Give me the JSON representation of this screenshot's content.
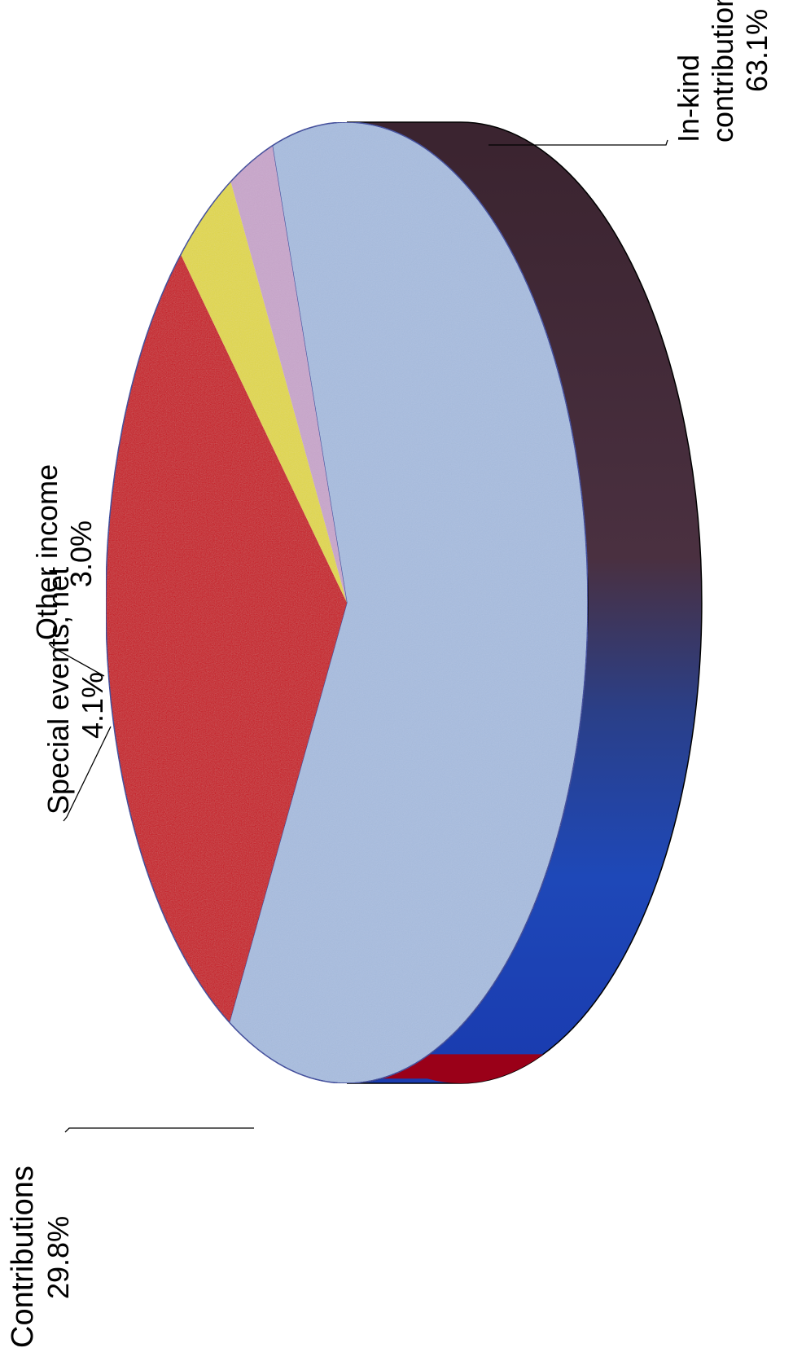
{
  "chart_data": {
    "type": "pie",
    "style": "3d",
    "orientation": "rotated 90° counter-clockwise",
    "slices": [
      {
        "label_line1": "In-kind",
        "label_line2": "contributions",
        "value_text": "63.1%",
        "value": 63.1,
        "color": "#a8bde0",
        "side_color": "#3a2633"
      },
      {
        "label_line1": "Contributions",
        "label_line2": "",
        "value_text": "29.8%",
        "value": 29.8,
        "color": "#c8001c",
        "side_color": "#9a0018"
      },
      {
        "label_line1": "Special events, net",
        "label_line2": "",
        "value_text": "4.1%",
        "value": 4.1,
        "color": "#e2d84a",
        "side_color": "#b8ae30"
      },
      {
        "label_line1": "Other income",
        "label_line2": "",
        "value_text": "3.0%",
        "value": 3.0,
        "color": "#c9a6cc",
        "side_color": "#9a7aa0"
      }
    ]
  }
}
